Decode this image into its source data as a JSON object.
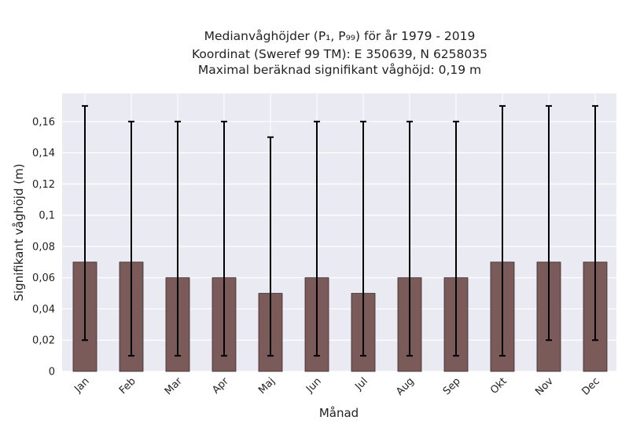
{
  "chart_data": {
    "type": "bar",
    "title_lines": [
      "Medianvåghöjder (P₁, P₉₉) för år 1979 - 2019",
      "Koordinat (Sweref 99 TM): E 350639, N 6258035",
      "Maximal beräknad signifikant våghöjd: 0,19 m"
    ],
    "xlabel": "Månad",
    "ylabel": "Signifikant våghöjd (m)",
    "categories": [
      "Jan",
      "Feb",
      "Mar",
      "Apr",
      "Maj",
      "Jun",
      "Jul",
      "Aug",
      "Sep",
      "Okt",
      "Nov",
      "Dec"
    ],
    "values": [
      0.07,
      0.07,
      0.06,
      0.06,
      0.05,
      0.06,
      0.05,
      0.06,
      0.06,
      0.07,
      0.07,
      0.07
    ],
    "p1": [
      0.02,
      0.01,
      0.01,
      0.01,
      0.01,
      0.01,
      0.01,
      0.01,
      0.01,
      0.01,
      0.02,
      0.02
    ],
    "p99": [
      0.17,
      0.16,
      0.16,
      0.16,
      0.15,
      0.16,
      0.16,
      0.16,
      0.16,
      0.17,
      0.17,
      0.17
    ],
    "ylim": [
      0,
      0.178
    ],
    "yticks": [
      0,
      0.02,
      0.04,
      0.06,
      0.08,
      0.1,
      0.12,
      0.14,
      0.16
    ],
    "ytick_labels": [
      "0",
      "0,02",
      "0,04",
      "0,06",
      "0,08",
      "0,1",
      "0,12",
      "0,14",
      "0,16"
    ],
    "grid": true,
    "colors": {
      "bar": "#7b5a5a",
      "bar_edge": "#3a2a2a",
      "plot_bg": "#eaeaf2",
      "grid": "#ffffff",
      "errorbar": "#000000"
    }
  }
}
